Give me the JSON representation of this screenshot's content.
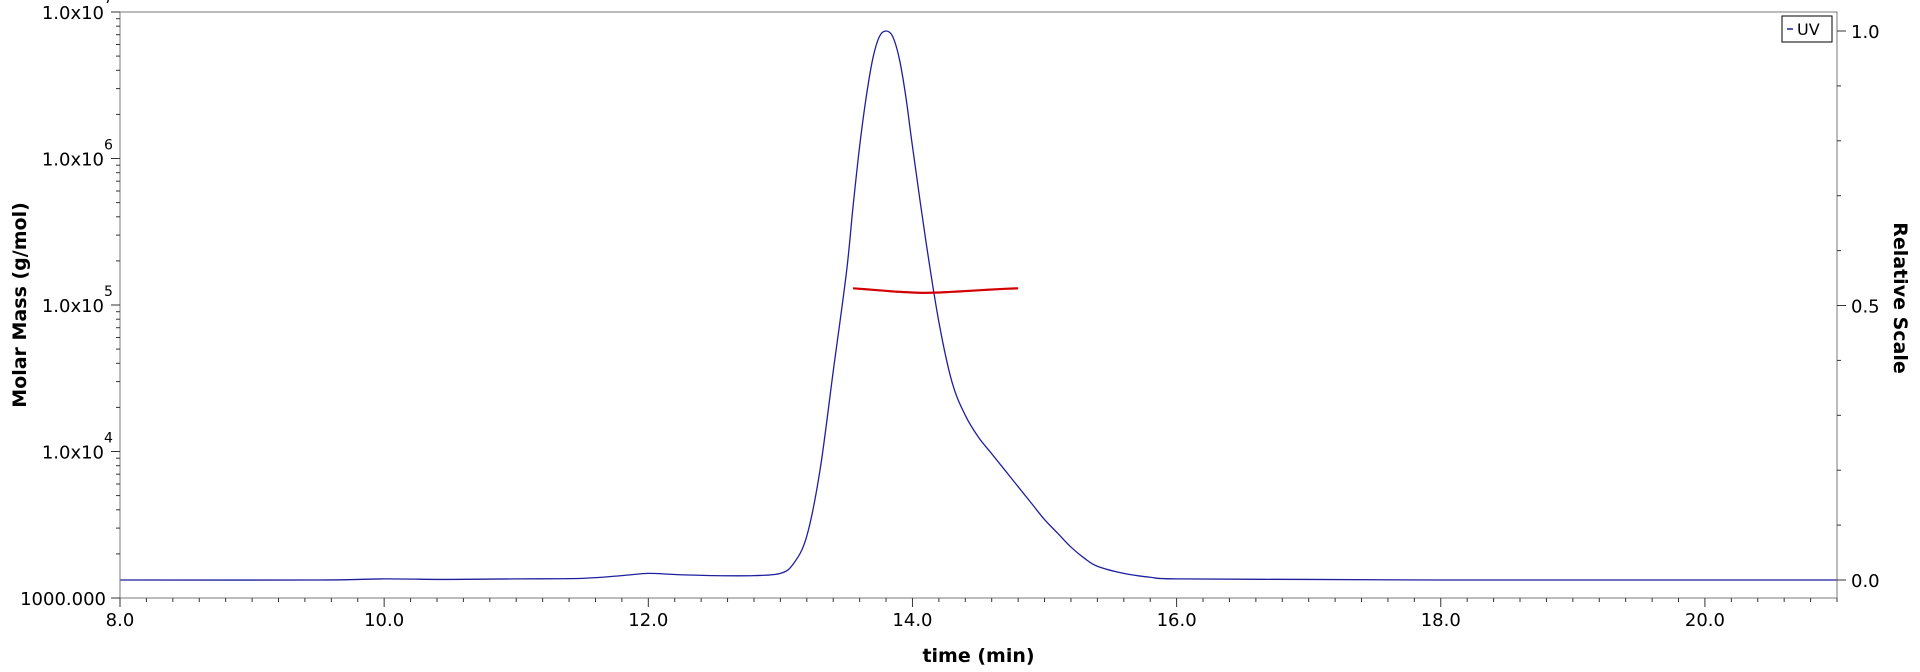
{
  "chart_data": {
    "type": "line",
    "xlabel": "time (min)",
    "ylabel_left": "Molar Mass (g/mol)",
    "ylabel_right": "Relative Scale",
    "xlim": [
      8.0,
      21.0
    ],
    "ylim_left": [
      1000,
      10000000
    ],
    "left_scale": "log",
    "ylim_right": [
      0.0,
      1.0
    ],
    "x_ticks": [
      "8.0",
      "10.0",
      "12.0",
      "14.0",
      "16.0",
      "18.0",
      "20.0"
    ],
    "y_left_ticks": [
      {
        "base": "1.0x10",
        "exp": "7"
      },
      {
        "base": "1.0x10",
        "exp": "6"
      },
      {
        "base": "1.0x10",
        "exp": "5"
      },
      {
        "base": "1.0x10",
        "exp": "4"
      },
      {
        "base": "1000.000",
        "exp": ""
      }
    ],
    "y_right_ticks": [
      "1.0",
      "0.5",
      "0.0"
    ],
    "grid": false,
    "legend": {
      "entries": [
        "UV"
      ],
      "placement": "top-right"
    },
    "series": [
      {
        "name": "UV",
        "axis": "right",
        "color": "#1f1f9e",
        "x": [
          8.0,
          9.5,
          10.0,
          10.5,
          11.0,
          11.5,
          11.8,
          12.0,
          12.2,
          12.5,
          12.8,
          13.0,
          13.1,
          13.2,
          13.3,
          13.4,
          13.5,
          13.55,
          13.6,
          13.65,
          13.7,
          13.75,
          13.8,
          13.85,
          13.9,
          13.95,
          14.0,
          14.1,
          14.2,
          14.3,
          14.4,
          14.5,
          14.6,
          14.7,
          14.8,
          14.9,
          15.0,
          15.1,
          15.2,
          15.3,
          15.4,
          15.6,
          15.8,
          16.0,
          17.0,
          18.0,
          19.0,
          20.0,
          21.0
        ],
        "values": [
          0.0,
          0.0,
          0.002,
          0.001,
          0.002,
          0.003,
          0.008,
          0.012,
          0.01,
          0.008,
          0.008,
          0.012,
          0.03,
          0.08,
          0.2,
          0.38,
          0.56,
          0.68,
          0.79,
          0.88,
          0.95,
          0.99,
          1.0,
          0.99,
          0.95,
          0.88,
          0.79,
          0.62,
          0.47,
          0.36,
          0.3,
          0.26,
          0.23,
          0.2,
          0.17,
          0.14,
          0.11,
          0.085,
          0.06,
          0.04,
          0.025,
          0.012,
          0.005,
          0.002,
          0.001,
          0.0,
          0.0,
          0.0,
          0.0
        ]
      },
      {
        "name": "",
        "axis": "left",
        "color": "#d40000",
        "x": [
          13.55,
          13.7,
          13.9,
          14.1,
          14.3,
          14.5,
          14.7,
          14.8
        ],
        "values": [
          130000,
          127000,
          123000,
          121000,
          123000,
          126000,
          129000,
          130000
        ]
      }
    ]
  }
}
